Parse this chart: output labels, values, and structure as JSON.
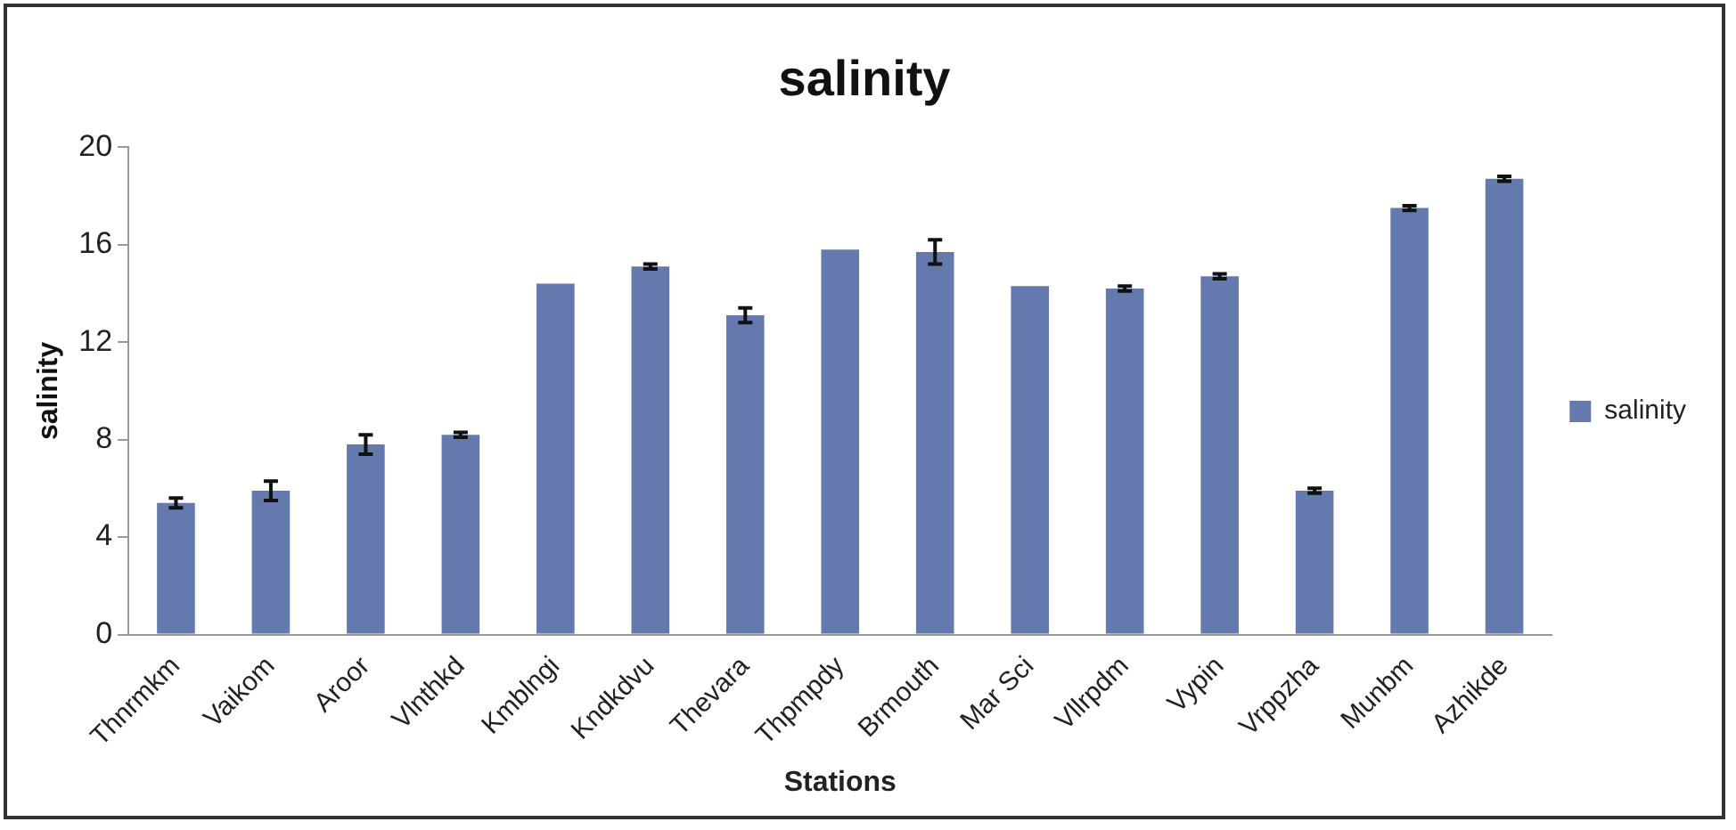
{
  "chart_data": {
    "type": "bar",
    "title": "salinity",
    "xlabel": "Stations",
    "ylabel": "salinity",
    "categories": [
      "Thnrmkm",
      "Vaikom",
      "Aroor",
      "Vlnthkd",
      "Kmblngi",
      "Kndkdvu",
      "Thevara",
      "Thpmpdy",
      "Brmouth",
      "Mar Sci",
      "Vllrpdm",
      "Vypin",
      "Vrppzha",
      "Munbm",
      "Azhikde"
    ],
    "series": [
      {
        "name": "salinity",
        "color": "#6479ad",
        "values": [
          5.4,
          5.9,
          7.8,
          8.2,
          14.4,
          15.1,
          13.1,
          15.8,
          15.7,
          14.3,
          14.2,
          14.7,
          5.9,
          17.5,
          18.7
        ],
        "errors": [
          0.2,
          0.4,
          0.4,
          0.1,
          null,
          0.1,
          0.3,
          null,
          0.5,
          null,
          0.1,
          0.1,
          0.1,
          0.1,
          0.1
        ]
      }
    ],
    "ylim": [
      0,
      20
    ],
    "yticks": [
      0,
      4,
      8,
      12,
      16,
      20
    ],
    "grid": false,
    "legend": "right"
  }
}
